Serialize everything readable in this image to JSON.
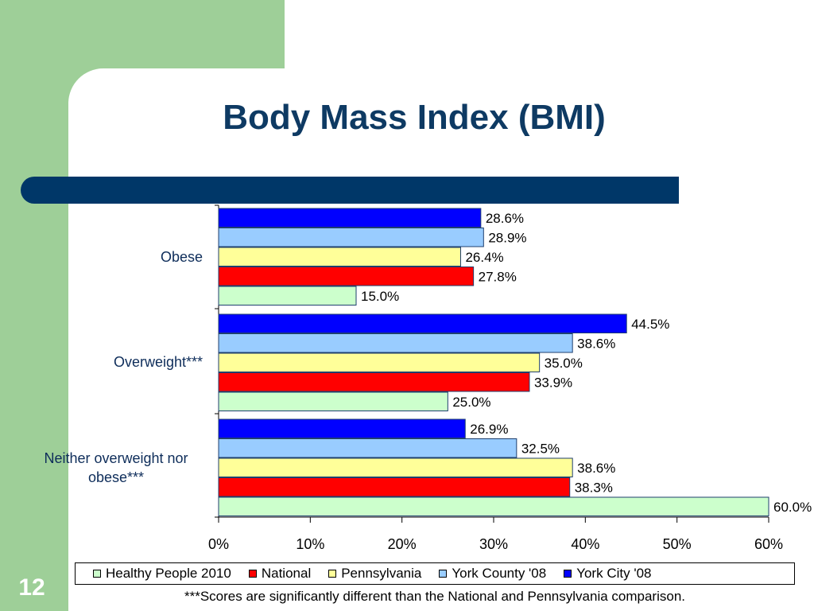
{
  "slide": {
    "title": "Body Mass Index (BMI)",
    "number": "12",
    "footnote": "***Scores are significantly different than the National and Pennsylvania comparison."
  },
  "colors": {
    "green_background": "#9ecf98",
    "title_text": "#0e3a63",
    "title_bar": "#003768"
  },
  "chart_data": {
    "type": "bar",
    "orientation": "horizontal",
    "title": "",
    "xlabel": "",
    "ylabel": "",
    "categories": [
      "Obese",
      "Overweight***",
      "Neither overweight nor obese***"
    ],
    "category_lines": [
      [
        "Obese"
      ],
      [
        "Overweight***"
      ],
      [
        "Neither overweight nor",
        "obese***"
      ]
    ],
    "xlim": [
      0,
      60
    ],
    "x_ticks": [
      "0%",
      "10%",
      "20%",
      "30%",
      "40%",
      "50%",
      "60%"
    ],
    "grid": false,
    "legend_position": "bottom",
    "series": [
      {
        "name": "York City '08",
        "color": "#0000ff",
        "values": [
          28.6,
          44.5,
          26.9
        ],
        "labels": [
          "28.6%",
          "44.5%",
          "26.9%"
        ]
      },
      {
        "name": "York County '08",
        "color": "#99ccff",
        "values": [
          28.9,
          38.6,
          32.5
        ],
        "labels": [
          "28.9%",
          "38.6%",
          "32.5%"
        ]
      },
      {
        "name": "Pennsylvania",
        "color": "#ffff99",
        "values": [
          26.4,
          35.0,
          38.6
        ],
        "labels": [
          "26.4%",
          "35.0%",
          "38.6%"
        ]
      },
      {
        "name": "National",
        "color": "#ff0000",
        "values": [
          27.8,
          33.9,
          38.3
        ],
        "labels": [
          "27.8%",
          "33.9%",
          "38.3%"
        ]
      },
      {
        "name": "Healthy People 2010",
        "color": "#ccffcc",
        "values": [
          15.0,
          25.0,
          60.0
        ],
        "labels": [
          "15.0%",
          "25.0%",
          "60.0%"
        ]
      }
    ],
    "legend_order": [
      "Healthy People 2010",
      "National",
      "Pennsylvania",
      "York County '08",
      "York City '08"
    ]
  }
}
